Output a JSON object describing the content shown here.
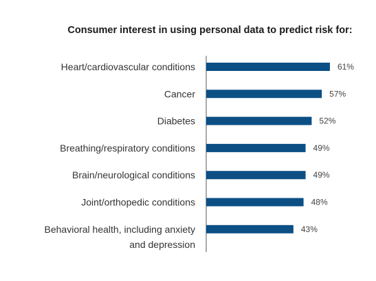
{
  "chart_data": {
    "type": "bar",
    "orientation": "horizontal",
    "title": "Consumer interest in using personal data to predict risk for:",
    "categories": [
      [
        "Heart/cardiovascular conditions"
      ],
      [
        "Cancer"
      ],
      [
        "Diabetes"
      ],
      [
        "Breathing/respiratory conditions"
      ],
      [
        "Brain/neurological conditions"
      ],
      [
        "Joint/orthopedic conditions"
      ],
      [
        "Behavioral health, including anxiety",
        "and depression"
      ]
    ],
    "values": [
      61,
      57,
      52,
      49,
      49,
      48,
      43
    ],
    "value_labels": [
      "61%",
      "57%",
      "52%",
      "49%",
      "49%",
      "48%",
      "43%"
    ],
    "xlim": [
      0,
      100
    ],
    "grid": false,
    "colors": {
      "bar": "#0b4f85",
      "axis": "#555555"
    }
  }
}
